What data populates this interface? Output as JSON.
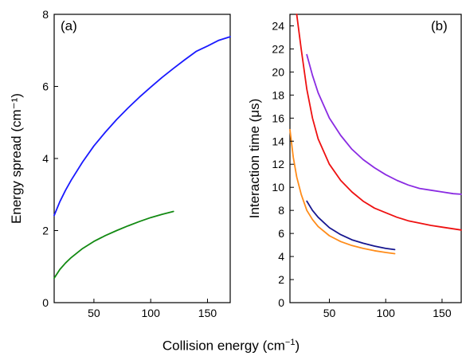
{
  "figure": {
    "shared_xlabel_prefix": "Collision energy (cm",
    "shared_xlabel_exp": "−1",
    "shared_xlabel_suffix": ")"
  },
  "chart_data": [
    {
      "type": "line",
      "panel_label": "(a)",
      "ylabel": "Energy spread (cm⁻¹)",
      "xlim": [
        15,
        170
      ],
      "ylim": [
        0,
        8
      ],
      "xticks": [
        50,
        100,
        150
      ],
      "yticks": [
        0,
        2,
        4,
        6,
        8
      ],
      "grid": false,
      "series": [
        {
          "color": "#1a1aff",
          "points": [
            [
              15,
              2.42
            ],
            [
              20,
              2.8
            ],
            [
              25,
              3.12
            ],
            [
              30,
              3.4
            ],
            [
              40,
              3.9
            ],
            [
              50,
              4.35
            ],
            [
              60,
              4.73
            ],
            [
              70,
              5.08
            ],
            [
              80,
              5.4
            ],
            [
              90,
              5.7
            ],
            [
              100,
              5.98
            ],
            [
              110,
              6.25
            ],
            [
              120,
              6.5
            ],
            [
              130,
              6.74
            ],
            [
              140,
              6.97
            ],
            [
              150,
              7.12
            ],
            [
              160,
              7.28
            ],
            [
              170,
              7.38
            ]
          ]
        },
        {
          "color": "#138a13",
          "points": [
            [
              15,
              0.68
            ],
            [
              20,
              0.92
            ],
            [
              25,
              1.1
            ],
            [
              30,
              1.25
            ],
            [
              40,
              1.5
            ],
            [
              50,
              1.7
            ],
            [
              60,
              1.86
            ],
            [
              70,
              2.0
            ],
            [
              80,
              2.13
            ],
            [
              90,
              2.25
            ],
            [
              100,
              2.36
            ],
            [
              110,
              2.45
            ],
            [
              120,
              2.53
            ]
          ]
        }
      ]
    },
    {
      "type": "line",
      "panel_label": "(b)",
      "ylabel": "Interaction time (μs)",
      "xlim": [
        15,
        167
      ],
      "ylim": [
        0,
        25
      ],
      "xticks": [
        50,
        100,
        150
      ],
      "yticks": [
        0,
        2,
        4,
        6,
        8,
        10,
        12,
        14,
        16,
        18,
        20,
        22,
        24
      ],
      "grid": false,
      "series": [
        {
          "color": "#8a2be2",
          "points": [
            [
              30,
              21.5
            ],
            [
              35,
              19.7
            ],
            [
              40,
              18.2
            ],
            [
              50,
              16.0
            ],
            [
              60,
              14.5
            ],
            [
              70,
              13.3
            ],
            [
              80,
              12.4
            ],
            [
              90,
              11.7
            ],
            [
              100,
              11.1
            ],
            [
              110,
              10.6
            ],
            [
              120,
              10.2
            ],
            [
              130,
              9.9
            ],
            [
              140,
              9.75
            ],
            [
              150,
              9.6
            ],
            [
              160,
              9.45
            ],
            [
              167,
              9.4
            ]
          ]
        },
        {
          "color": "#ee1111",
          "points": [
            [
              21,
              25.0
            ],
            [
              25,
              22.0
            ],
            [
              30,
              18.5
            ],
            [
              35,
              16.0
            ],
            [
              40,
              14.2
            ],
            [
              50,
              12.0
            ],
            [
              60,
              10.6
            ],
            [
              70,
              9.6
            ],
            [
              80,
              8.8
            ],
            [
              90,
              8.2
            ],
            [
              100,
              7.8
            ],
            [
              110,
              7.4
            ],
            [
              120,
              7.1
            ],
            [
              130,
              6.9
            ],
            [
              140,
              6.7
            ],
            [
              150,
              6.55
            ],
            [
              160,
              6.4
            ],
            [
              167,
              6.3
            ]
          ]
        },
        {
          "color": "#16168f",
          "points": [
            [
              30,
              8.8
            ],
            [
              35,
              8.0
            ],
            [
              40,
              7.4
            ],
            [
              50,
              6.5
            ],
            [
              60,
              5.9
            ],
            [
              70,
              5.45
            ],
            [
              80,
              5.15
            ],
            [
              90,
              4.9
            ],
            [
              100,
              4.7
            ],
            [
              108,
              4.6
            ]
          ]
        },
        {
          "color": "#ff8c1a",
          "points": [
            [
              15,
              15.0
            ],
            [
              18,
              12.6
            ],
            [
              21,
              10.9
            ],
            [
              25,
              9.4
            ],
            [
              30,
              8.0
            ],
            [
              35,
              7.2
            ],
            [
              40,
              6.6
            ],
            [
              50,
              5.8
            ],
            [
              60,
              5.3
            ],
            [
              70,
              4.95
            ],
            [
              80,
              4.7
            ],
            [
              90,
              4.5
            ],
            [
              100,
              4.35
            ],
            [
              108,
              4.25
            ]
          ]
        }
      ]
    }
  ]
}
